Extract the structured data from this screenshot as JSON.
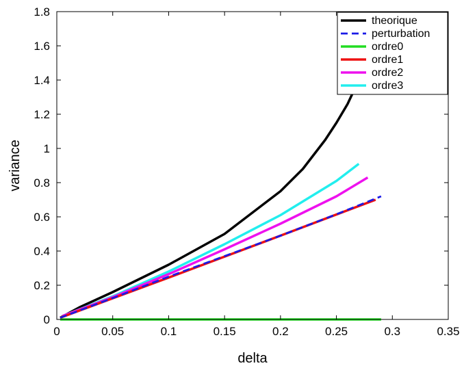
{
  "chart_data": {
    "type": "line",
    "xlabel": "delta",
    "ylabel": "variance",
    "xlim": [
      0,
      0.35
    ],
    "ylim": [
      0,
      1.8
    ],
    "xticks": [
      "0",
      "0.05",
      "0.1",
      "0.15",
      "0.2",
      "0.25",
      "0.3",
      "0.35"
    ],
    "yticks": [
      "0",
      "0.2",
      "0.4",
      "0.6",
      "0.8",
      "1",
      "1.2",
      "1.4",
      "1.6",
      "1.8"
    ],
    "grid": false,
    "legend_position": "top-right",
    "series": [
      {
        "name": "theorique",
        "color": "#000000",
        "dash": "solid",
        "x": [
          0.003,
          0.02,
          0.05,
          0.1,
          0.15,
          0.2,
          0.22,
          0.24,
          0.25,
          0.26,
          0.27,
          0.28
        ],
        "y": [
          0.01,
          0.07,
          0.16,
          0.32,
          0.5,
          0.75,
          0.88,
          1.05,
          1.15,
          1.26,
          1.4,
          1.56
        ]
      },
      {
        "name": "perturbation",
        "color": "#1a1ae6",
        "dash": "dashed",
        "x": [
          0.003,
          0.05,
          0.1,
          0.15,
          0.2,
          0.25,
          0.29
        ],
        "y": [
          0.01,
          0.125,
          0.25,
          0.37,
          0.49,
          0.615,
          0.72
        ]
      },
      {
        "name": "ordre0",
        "color": "#22dd22",
        "dash": "solid",
        "x": [
          0.003,
          0.29
        ],
        "y": [
          0.0,
          0.0
        ]
      },
      {
        "name": "ordre1",
        "color": "#ee1111",
        "dash": "solid",
        "x": [
          0.003,
          0.1,
          0.2,
          0.285
        ],
        "y": [
          0.01,
          0.245,
          0.49,
          0.7
        ]
      },
      {
        "name": "ordre2",
        "color": "#ee11ee",
        "dash": "solid",
        "x": [
          0.005,
          0.05,
          0.1,
          0.15,
          0.2,
          0.25,
          0.278
        ],
        "y": [
          0.02,
          0.13,
          0.265,
          0.41,
          0.56,
          0.72,
          0.83
        ]
      },
      {
        "name": "ordre3",
        "color": "#22eeee",
        "dash": "solid",
        "x": [
          0.005,
          0.05,
          0.1,
          0.15,
          0.2,
          0.25,
          0.27
        ],
        "y": [
          0.02,
          0.135,
          0.28,
          0.44,
          0.61,
          0.81,
          0.91
        ]
      }
    ]
  }
}
